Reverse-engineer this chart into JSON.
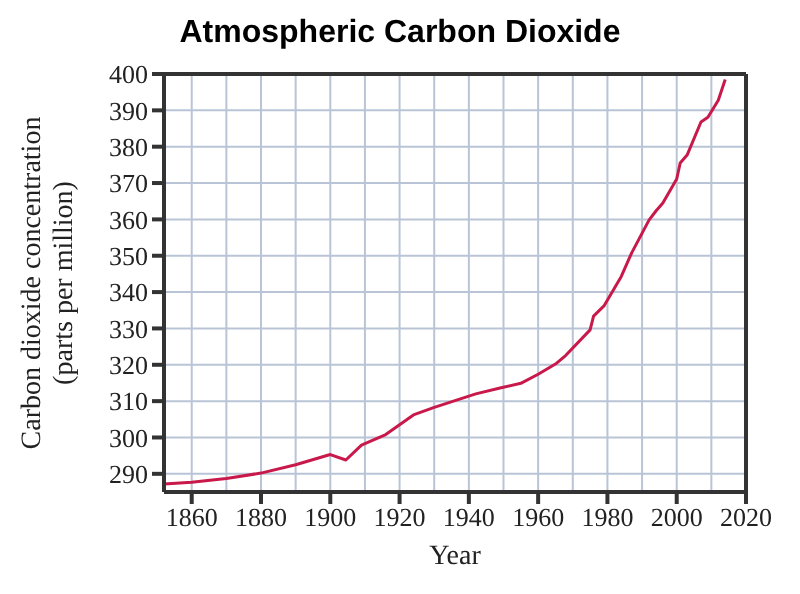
{
  "chart_data": {
    "type": "line",
    "title": "Atmospheric Carbon Dioxide",
    "xlabel": "Year",
    "ylabel": "Carbon dioxide concentration\n(parts per million)",
    "x": [
      1852,
      1860,
      1870,
      1880,
      1890,
      1900,
      1904.5,
      1909,
      1916,
      1924,
      1930,
      1942,
      1949,
      1955,
      1960,
      1965,
      1968,
      1975,
      1976,
      1979,
      1984,
      1987,
      1992,
      1994,
      1996,
      2000,
      2001,
      2003,
      2007,
      2009,
      2012,
      2014
    ],
    "series": [
      {
        "color": "#c8194a",
        "values": [
          287.2,
          287.7,
          288.7,
          290.2,
          292.5,
          295.3,
          293.8,
          297.9,
          300.8,
          306.2,
          308.3,
          312,
          313.6,
          314.9,
          317.4,
          320.2,
          322.6,
          329.6,
          333.4,
          336.2,
          344.3,
          350.8,
          359.8,
          362.3,
          364.5,
          371.1,
          375.5,
          377.7,
          386.8,
          388.1,
          392.8,
          398.5
        ]
      }
    ],
    "xlim": [
      1852,
      2020
    ],
    "xticks": [
      1860,
      {
        "value": 1870,
        "label": null
      },
      1880,
      {
        "value": 1890,
        "label": null
      },
      1900,
      {
        "value": 1910,
        "label": null
      },
      1920,
      {
        "value": 1930,
        "label": null
      },
      1940,
      {
        "value": 1950,
        "label": null
      },
      1960,
      {
        "value": 1970,
        "label": null
      },
      1980,
      {
        "value": 1990,
        "label": null
      },
      2000,
      {
        "value": 2010,
        "label": null
      },
      2020
    ],
    "ylim": [
      285,
      400
    ],
    "yticks": [
      290,
      300,
      310,
      320,
      330,
      340,
      350,
      360,
      370,
      380,
      390,
      400
    ],
    "grid": true,
    "marker": "none",
    "line_style": "solid",
    "legend": false
  }
}
